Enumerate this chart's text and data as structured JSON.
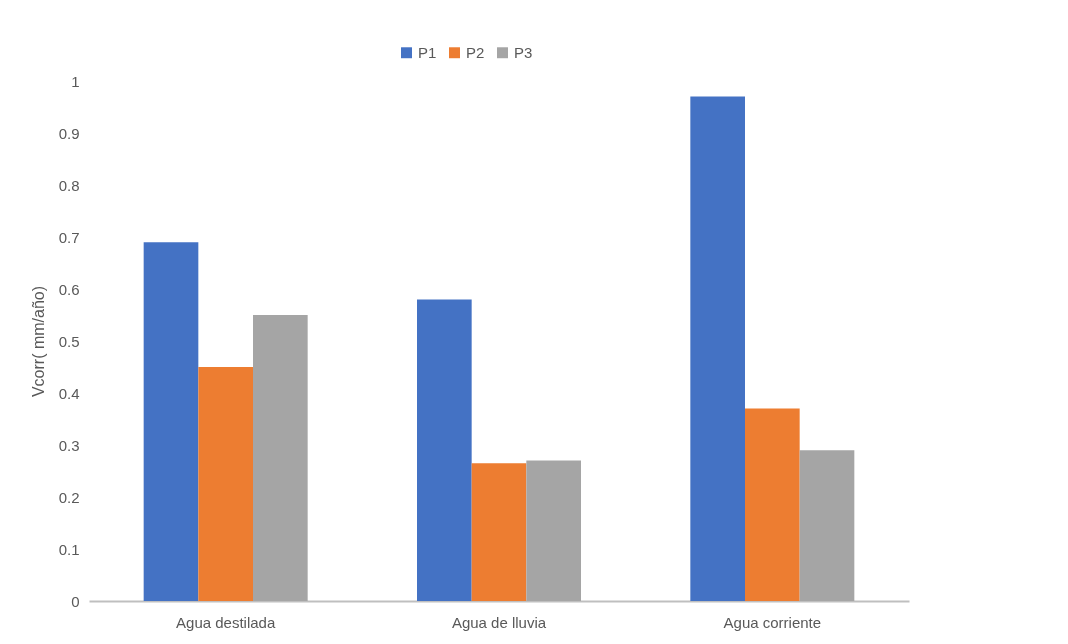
{
  "chart_data": {
    "type": "bar",
    "ylabel": "Vcorr( mm/año)",
    "categories": [
      "Agua destilada",
      "Agua de lluvia",
      "Agua corriente"
    ],
    "series": [
      {
        "name": "P1",
        "color": "#4472c4",
        "values": [
          0.69,
          0.58,
          0.97
        ]
      },
      {
        "name": "P2",
        "color": "#ed7d31",
        "values": [
          0.45,
          0.265,
          0.37
        ]
      },
      {
        "name": "P3",
        "color": "#a5a5a5",
        "values": [
          0.55,
          0.27,
          0.29
        ]
      }
    ],
    "ylim": [
      0,
      1
    ],
    "yticks": [
      0,
      0.1,
      0.2,
      0.3,
      0.4,
      0.5,
      0.6,
      0.7,
      0.8,
      0.9,
      1
    ],
    "grid": false,
    "legend": "top"
  }
}
